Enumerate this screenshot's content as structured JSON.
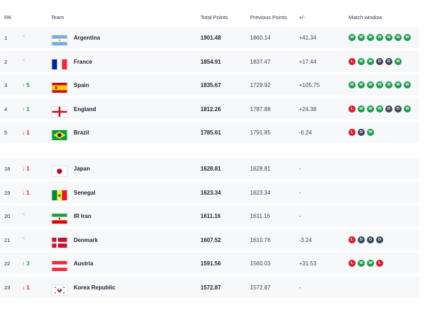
{
  "header": {
    "rank_label": "RK",
    "team_label": "Team",
    "total_label": "Total Points",
    "previous_label": "Previous Points",
    "diff_label": "+/-",
    "window_label": "Match window"
  },
  "colors": {
    "up": "#1fa04a",
    "down": "#d11f32",
    "win": "#1f9b4c",
    "loss": "#d11f32",
    "draw": "#3f4657",
    "row_bg": "#f7f8fa"
  },
  "rows": [
    {
      "rank": "1",
      "move": "•",
      "move_dir": "none",
      "flag": "argentina-flag-icon",
      "team": "Argentina",
      "total": "1901.48",
      "previous": "1860.14",
      "diff": "+41.34",
      "results": [
        "W",
        "W",
        "W",
        "W",
        "W",
        "W",
        "W"
      ]
    },
    {
      "rank": "2",
      "move": "•",
      "move_dir": "none",
      "flag": "france-flag-icon",
      "team": "France",
      "total": "1854.91",
      "previous": "1837.47",
      "diff": "+17.44",
      "results": [
        "L",
        "W",
        "W",
        "D",
        "D",
        "W"
      ]
    },
    {
      "rank": "3",
      "move": "↑ 5",
      "move_dir": "up",
      "flag": "spain-flag-icon",
      "team": "Spain",
      "total": "1835.67",
      "previous": "1729.92",
      "diff": "+105.75",
      "results": [
        "W",
        "W",
        "W",
        "W",
        "W",
        "W",
        "W"
      ]
    },
    {
      "rank": "4",
      "move": "↑ 1",
      "move_dir": "up",
      "flag": "england-flag-icon",
      "team": "England",
      "total": "1812.26",
      "previous": "1787.88",
      "diff": "+24.38",
      "results": [
        "L",
        "W",
        "W",
        "W",
        "D",
        "D",
        "W"
      ]
    },
    {
      "rank": "5",
      "move": "↓ 1",
      "move_dir": "down",
      "flag": "brazil-flag-icon",
      "team": "Brazil",
      "total": "1785.61",
      "previous": "1791.85",
      "diff": "-6.24",
      "results": [
        "L",
        "D",
        "W"
      ]
    },
    {
      "rank": "18",
      "move": "↓ 1",
      "move_dir": "down",
      "flag": "japan-flag-icon",
      "team": "Japan",
      "total": "1628.81",
      "previous": "1628.81",
      "diff": "-",
      "results": []
    },
    {
      "rank": "19",
      "move": "↓ 1",
      "move_dir": "down",
      "flag": "senegal-flag-icon",
      "team": "Senegal",
      "total": "1623.34",
      "previous": "1623.34",
      "diff": "-",
      "results": []
    },
    {
      "rank": "20",
      "move": "•",
      "move_dir": "none",
      "flag": "iran-flag-icon",
      "team": "IR Iran",
      "total": "1611.16",
      "previous": "1611.16",
      "diff": "-",
      "results": []
    },
    {
      "rank": "21",
      "move": "•",
      "move_dir": "none",
      "flag": "denmark-flag-icon",
      "team": "Denmark",
      "total": "1607.52",
      "previous": "1610.76",
      "diff": "-3.24",
      "results": [
        "L",
        "D",
        "D",
        "D"
      ]
    },
    {
      "rank": "22",
      "move": "↑ 3",
      "move_dir": "up",
      "flag": "austria-flag-icon",
      "team": "Austria",
      "total": "1591.56",
      "previous": "1560.03",
      "diff": "+31.53",
      "results": [
        "L",
        "W",
        "W",
        "L"
      ]
    },
    {
      "rank": "23",
      "move": "↓ 1",
      "move_dir": "down",
      "flag": "korea-flag-icon",
      "team": "Korea Republic",
      "total": "1572.87",
      "previous": "1572.87",
      "diff": "-",
      "results": []
    }
  ]
}
